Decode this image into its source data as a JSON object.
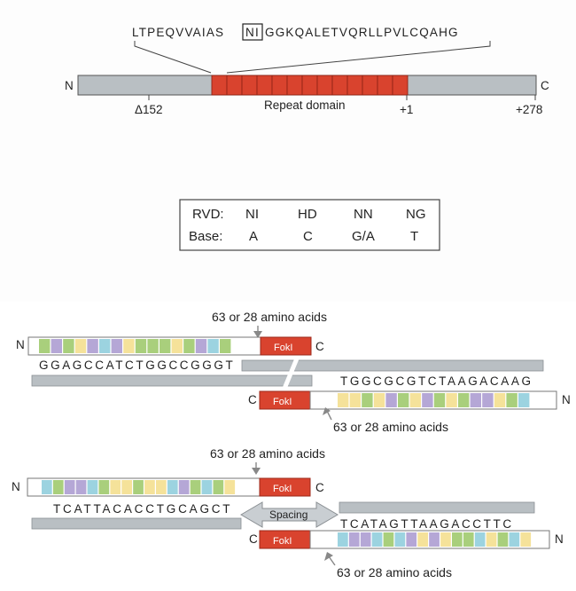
{
  "top": {
    "sequence_pre": "LTPEQVVAIAS",
    "sequence_rvd": "NI",
    "sequence_post": "GGKQALETVQRLLPVLCQAHG",
    "n_terminus": "N",
    "c_terminus": "C",
    "pos_left": "Δ152",
    "pos_mid": "+1",
    "pos_right": "+278",
    "repeat_domain_label": "Repeat domain",
    "repeat_count": 13,
    "colors": {
      "backbone": "#b9bfc3",
      "repeat": "#d9432e"
    }
  },
  "rvd_table": {
    "row1_header": "RVD:",
    "row1": [
      "NI",
      "HD",
      "NN",
      "NG"
    ],
    "row2_header": "Base:",
    "row2": [
      "A",
      "C",
      "G/A",
      "T"
    ]
  },
  "bottom": {
    "linker_label": "63 or 28 amino acids",
    "fokI_label": "FokI",
    "n_terminus": "N",
    "c_terminus": "C",
    "pair1_seq_top": "GGAGCCATCTGGCCGGGT",
    "pair1_seq_bottom": "TGGCGCGTCTAAGACAAG",
    "pair2_seq_top": "TCATTACACCTGCAGCT",
    "pair2_seq_bottom": "TCATAGTTAAGACCTTC",
    "spacing_label": "Spacing",
    "colors": {
      "green": "#a9cf7c",
      "purple": "#b5a7d6",
      "yellow": "#f5e29a",
      "blue": "#9cd3e0",
      "fokI": "#d9432e",
      "dna": "#b9bfc3"
    },
    "arrays": {
      "pair1_top": [
        "green",
        "purple",
        "green",
        "yellow",
        "purple",
        "blue",
        "purple",
        "yellow",
        "green",
        "green",
        "green",
        "yellow",
        "green",
        "purple",
        "blue",
        "green"
      ],
      "pair1_bottom": [
        "yellow",
        "yellow",
        "green",
        "yellow",
        "purple",
        "green",
        "yellow",
        "purple",
        "green",
        "yellow",
        "green",
        "purple",
        "purple",
        "yellow",
        "green",
        "blue"
      ],
      "pair2_top": [
        "blue",
        "green",
        "purple",
        "purple",
        "blue",
        "green",
        "yellow",
        "yellow",
        "green",
        "yellow",
        "yellow",
        "blue",
        "purple",
        "green",
        "blue",
        "green",
        "yellow"
      ],
      "pair2_bottom": [
        "blue",
        "purple",
        "purple",
        "blue",
        "green",
        "blue",
        "purple",
        "yellow",
        "purple",
        "yellow",
        "green",
        "green",
        "blue",
        "yellow",
        "green",
        "blue",
        "yellow"
      ]
    }
  }
}
